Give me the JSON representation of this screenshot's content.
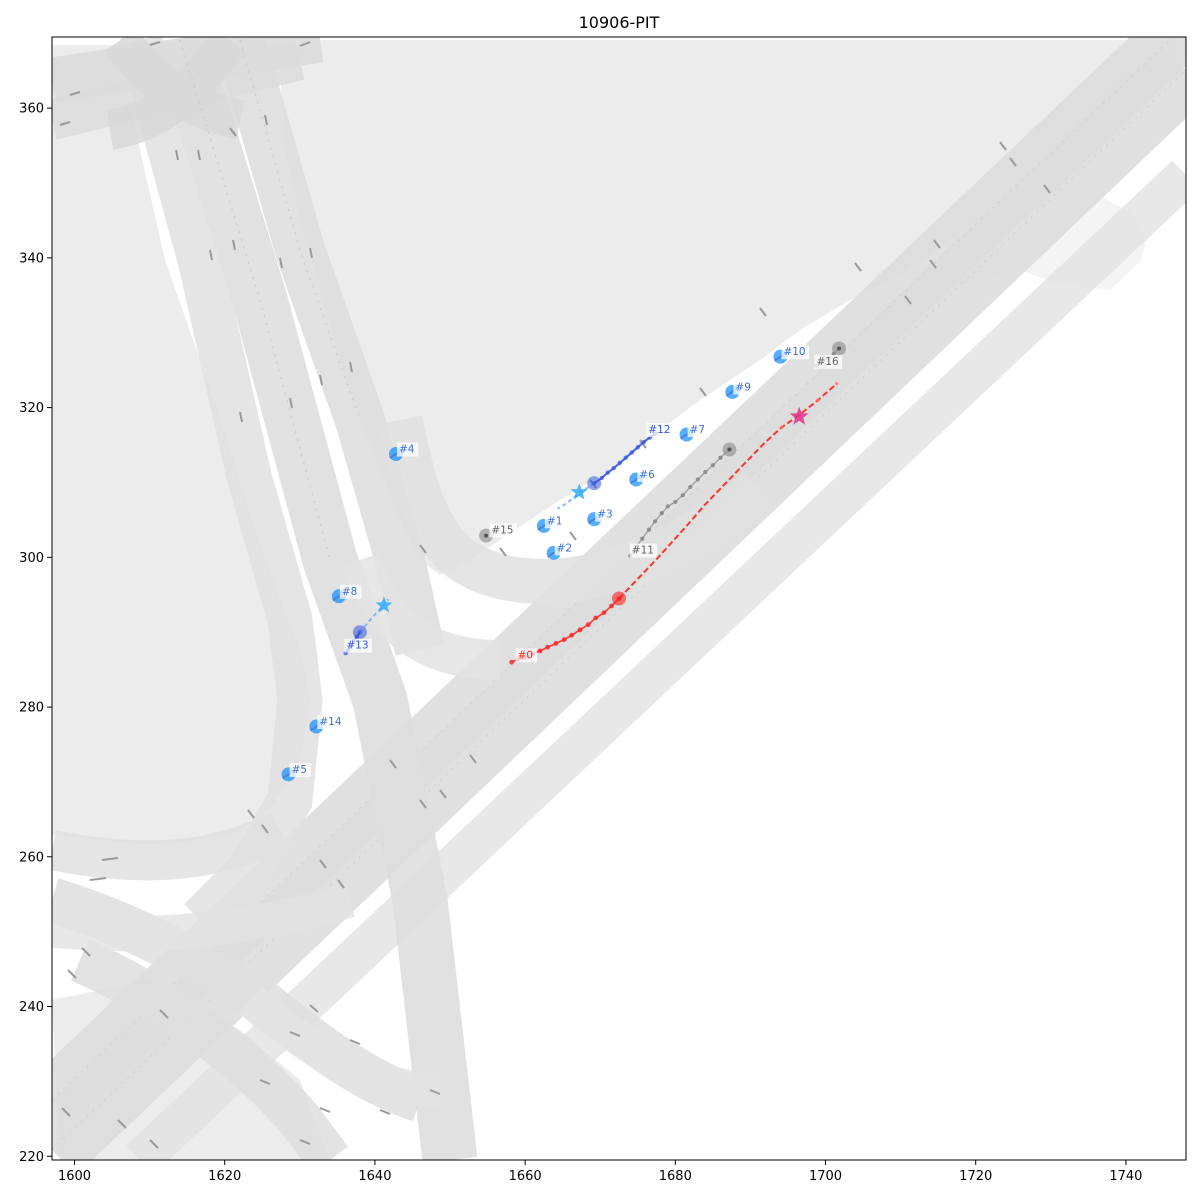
{
  "title": "10906-PIT",
  "chart_data": {
    "type": "scatter",
    "xlim": [
      1597,
      1748
    ],
    "ylim": [
      219.5,
      369.5
    ],
    "x_ticks": [
      1600,
      1620,
      1640,
      1660,
      1680,
      1700,
      1720,
      1740
    ],
    "y_ticks": [
      220,
      240,
      260,
      280,
      300,
      320,
      340,
      360
    ],
    "colors": {
      "focal": "#ff2020",
      "focal_goal": "#e0308a",
      "vehicle": "#1e90ff",
      "predicted": "#3355dd",
      "goal_star": "#33aaff",
      "static": "#888888",
      "road": "#d4d4d4",
      "lane_marking": "#9a9a9a",
      "ground": "#ececec"
    },
    "agents": [
      {
        "id": "#0",
        "kind": "focal",
        "x": 1672.5,
        "y": 294.5,
        "label_x": 1659,
        "label_y": 286.5,
        "history": [
          [
            1658.2,
            286.0
          ],
          [
            1659.1,
            286.4
          ],
          [
            1660.0,
            286.6
          ],
          [
            1661.0,
            287.1
          ],
          [
            1662.0,
            287.5
          ],
          [
            1663.0,
            288.0
          ],
          [
            1664.1,
            288.5
          ],
          [
            1665.2,
            289.0
          ],
          [
            1666.2,
            289.6
          ],
          [
            1667.3,
            290.3
          ],
          [
            1668.4,
            291.0
          ],
          [
            1669.4,
            291.9
          ],
          [
            1670.5,
            292.6
          ],
          [
            1671.5,
            293.5
          ],
          [
            1672.5,
            294.5
          ]
        ],
        "future": [
          [
            1672.5,
            294.5
          ],
          [
            1674.5,
            296.6
          ],
          [
            1676.8,
            299.0
          ],
          [
            1679.0,
            301.4
          ],
          [
            1681.5,
            304.2
          ],
          [
            1684.0,
            307.1
          ],
          [
            1686.6,
            309.8
          ],
          [
            1689.2,
            312.5
          ],
          [
            1691.8,
            315.2
          ],
          [
            1694.2,
            317.4
          ],
          [
            1696.5,
            319.0
          ],
          [
            1699.0,
            321.0
          ],
          [
            1701.5,
            323.2
          ]
        ],
        "goal": [
          1696.5,
          318.8
        ]
      },
      {
        "id": "#1",
        "kind": "vehicle",
        "x": 1662.5,
        "y": 304.2
      },
      {
        "id": "#2",
        "kind": "vehicle",
        "x": 1663.8,
        "y": 300.6
      },
      {
        "id": "#3",
        "kind": "vehicle",
        "x": 1669.2,
        "y": 305.1
      },
      {
        "id": "#4",
        "kind": "vehicle",
        "x": 1642.8,
        "y": 313.8
      },
      {
        "id": "#5",
        "kind": "vehicle",
        "x": 1628.5,
        "y": 271.0
      },
      {
        "id": "#6",
        "kind": "vehicle",
        "x": 1674.8,
        "y": 310.4
      },
      {
        "id": "#7",
        "kind": "vehicle",
        "x": 1681.5,
        "y": 316.4
      },
      {
        "id": "#8",
        "kind": "vehicle",
        "x": 1635.2,
        "y": 294.8
      },
      {
        "id": "#9",
        "kind": "vehicle",
        "x": 1687.6,
        "y": 322.1
      },
      {
        "id": "#10",
        "kind": "vehicle",
        "x": 1694.0,
        "y": 326.8
      },
      {
        "id": "#11",
        "kind": "static",
        "x": 1687.2,
        "y": 314.4,
        "label_x": 1674.2,
        "label_y": 300.5,
        "history": [
          [
            1674.0,
            300.2
          ],
          [
            1674.8,
            301.4
          ],
          [
            1675.6,
            302.5
          ],
          [
            1676.5,
            303.7
          ],
          [
            1677.3,
            304.8
          ],
          [
            1678.2,
            305.9
          ],
          [
            1679.0,
            306.8
          ],
          [
            1680.0,
            307.4
          ],
          [
            1681.0,
            308.3
          ],
          [
            1682.0,
            309.4
          ],
          [
            1683.0,
            310.4
          ],
          [
            1684.0,
            311.4
          ],
          [
            1685.0,
            312.3
          ],
          [
            1686.0,
            313.3
          ],
          [
            1687.2,
            314.4
          ]
        ]
      },
      {
        "id": "#12",
        "kind": "predicted",
        "x": 1669.2,
        "y": 309.9,
        "label_x": 1676.4,
        "label_y": 316.6,
        "trail": [
          [
            1669.2,
            309.9
          ],
          [
            1670.2,
            310.6
          ],
          [
            1671.0,
            311.3
          ],
          [
            1671.8,
            311.9
          ],
          [
            1672.6,
            312.6
          ],
          [
            1673.4,
            313.3
          ],
          [
            1674.2,
            314.0
          ],
          [
            1675.0,
            314.7
          ],
          [
            1675.8,
            315.4
          ],
          [
            1676.6,
            316.0
          ],
          [
            1677.4,
            316.5
          ]
        ],
        "future": [
          [
            1669.2,
            309.9
          ],
          [
            1667.0,
            308.4
          ],
          [
            1665.5,
            307.2
          ],
          [
            1664.3,
            306.5
          ]
        ],
        "goal": [
          1667.2,
          308.7
        ]
      },
      {
        "id": "#13",
        "kind": "predicted",
        "x": 1638.0,
        "y": 290.0,
        "label_x": 1636.2,
        "label_y": 287.8,
        "trail": [
          [
            1638.0,
            290.0
          ],
          [
            1637.6,
            289.4
          ],
          [
            1637.2,
            288.8
          ],
          [
            1636.8,
            288.2
          ],
          [
            1636.4,
            287.6
          ],
          [
            1636.1,
            287.2
          ]
        ],
        "future": [
          [
            1638.0,
            290.0
          ],
          [
            1639.5,
            291.8
          ],
          [
            1640.6,
            293.0
          ],
          [
            1641.8,
            294.4
          ]
        ],
        "goal": [
          1641.2,
          293.6
        ]
      },
      {
        "id": "#14",
        "kind": "vehicle",
        "x": 1632.2,
        "y": 277.4
      },
      {
        "id": "#15",
        "kind": "static",
        "x": 1654.8,
        "y": 302.9,
        "label_x": 1655.5,
        "label_y": 303.2
      },
      {
        "id": "#16",
        "kind": "static",
        "x": 1701.8,
        "y": 327.9,
        "label_x": 1698.8,
        "label_y": 325.7,
        "history": [
          [
            1698.8,
            325.6
          ],
          [
            1699.6,
            326.1
          ],
          [
            1700.4,
            326.6
          ],
          [
            1701.1,
            327.2
          ],
          [
            1701.8,
            327.9
          ]
        ]
      }
    ]
  }
}
